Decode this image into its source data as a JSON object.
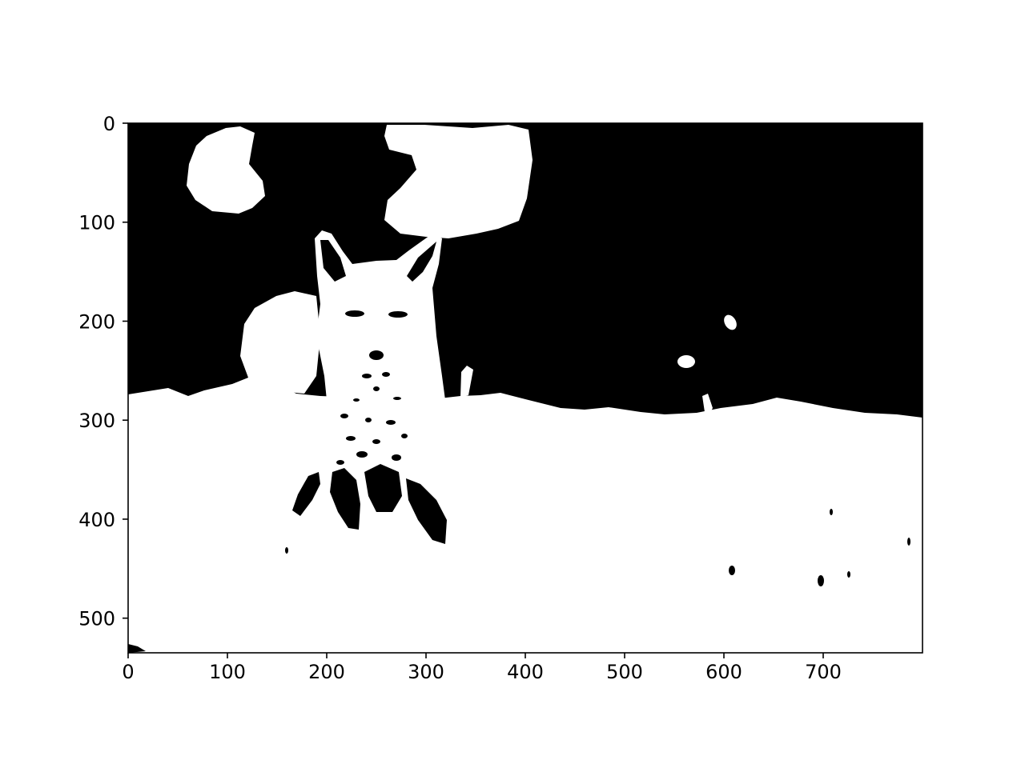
{
  "chart_data": {
    "type": "heatmap",
    "title": "",
    "xlabel": "",
    "ylabel": "",
    "image_size": [
      800,
      535
    ],
    "xlim": [
      0,
      800
    ],
    "ylim": [
      535,
      0
    ],
    "y_inverted": true,
    "x_ticks": [
      0,
      100,
      200,
      300,
      400,
      500,
      600,
      700
    ],
    "x_tick_labels": [
      "0",
      "100",
      "200",
      "300",
      "400",
      "500",
      "600",
      "700"
    ],
    "y_ticks": [
      0,
      100,
      200,
      300,
      400,
      500
    ],
    "y_tick_labels": [
      "0",
      "100",
      "200",
      "300",
      "400",
      "500"
    ],
    "colormap": "binary",
    "grid": false,
    "legend": "none",
    "content": "binary thresholded photograph of a fox sitting in snow"
  },
  "colors": {
    "foreground": "#ffffff",
    "background": "#000000",
    "axes": "#000000"
  }
}
